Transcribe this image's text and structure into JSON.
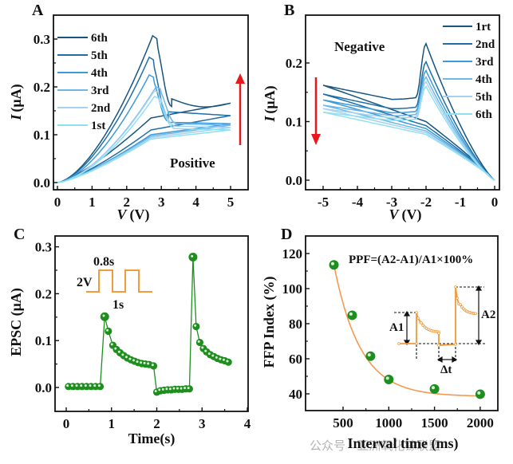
{
  "chart_data": [
    {
      "id": "A",
      "type": "line",
      "panel_label": "A",
      "xlabel": "V (V)",
      "xlabel_italic": "V",
      "xlabel_unit": "(V)",
      "ylabel": "I (μA)",
      "ylabel_italic": "I",
      "ylabel_unit": "(μA)",
      "xlim": [
        -0.1,
        5.5
      ],
      "ylim": [
        -0.02,
        0.34
      ],
      "xticks": [
        0,
        1,
        2,
        3,
        4,
        5
      ],
      "yticks": [
        0.0,
        0.1,
        0.2,
        0.3
      ],
      "ytick_labels": [
        "0.0",
        "0.1",
        "0.2",
        "0.3"
      ],
      "annotation": "Positive",
      "arrow": {
        "direction": "up",
        "color": "#e8191c"
      },
      "legend_placement": "top-left",
      "series": [
        {
          "name": "6th",
          "color": "#17557f",
          "peak_v": 2.75,
          "peak_i": 0.307,
          "fwd_end": 0.166,
          "rev_end_low": 0.166,
          "rev_tail": 0.165
        },
        {
          "name": "5th",
          "color": "#1f6fa6",
          "peak_v": 2.65,
          "peak_i": 0.262,
          "fwd_end": 0.14,
          "rev_tail": 0.14
        },
        {
          "name": "4th",
          "color": "#3d9ad9",
          "peak_v": 2.65,
          "peak_i": 0.225,
          "fwd_end": 0.123,
          "rev_tail": 0.123
        },
        {
          "name": "3rd",
          "color": "#6fb7e8",
          "peak_v": 2.85,
          "peak_i": 0.2,
          "fwd_end": 0.12,
          "rev_tail": 0.12
        },
        {
          "name": "2nd",
          "color": "#a6d2ef",
          "peak_v": 2.8,
          "peak_i": 0.192,
          "fwd_end": 0.115,
          "rev_tail": 0.115
        },
        {
          "name": "1st",
          "color": "#8fe0f5",
          "peak_v": 2.8,
          "peak_i": 0.18,
          "fwd_end": 0.11,
          "rev_tail": 0.11
        }
      ]
    },
    {
      "id": "B",
      "type": "line",
      "panel_label": "B",
      "xlabel": "V (V)",
      "xlabel_italic": "V",
      "xlabel_unit": "(V)",
      "ylabel": "I (μA)",
      "ylabel_italic": "I",
      "ylabel_unit": "(μA)",
      "xlim": [
        -5.5,
        0.1
      ],
      "ylim": [
        -0.02,
        0.27
      ],
      "xticks": [
        -5,
        -4,
        -3,
        -2,
        -1,
        0
      ],
      "yticks": [
        0.0,
        0.1,
        0.2
      ],
      "ytick_labels": [
        "0.0",
        "0.1",
        "0.2"
      ],
      "annotation": "Negative",
      "arrow": {
        "direction": "down",
        "color": "#e8191c"
      },
      "legend_placement": "top-right",
      "series": [
        {
          "name": "1rt",
          "color": "#17557f",
          "peak_i": 0.233,
          "start_i": 0.162,
          "valley_i": 0.138,
          "rev_mid": 0.1
        },
        {
          "name": "2nd",
          "color": "#1f6fa6",
          "peak_i": 0.202,
          "start_i": 0.147,
          "valley_i": 0.122,
          "rev_mid": 0.093
        },
        {
          "name": "3rd",
          "color": "#3d9ad9",
          "peak_i": 0.187,
          "start_i": 0.137,
          "valley_i": 0.115,
          "rev_mid": 0.088
        },
        {
          "name": "4th",
          "color": "#6fb7e8",
          "peak_i": 0.176,
          "start_i": 0.128,
          "valley_i": 0.11,
          "rev_mid": 0.084
        },
        {
          "name": "5th",
          "color": "#a6d2ef",
          "peak_i": 0.168,
          "start_i": 0.122,
          "valley_i": 0.106,
          "rev_mid": 0.081
        },
        {
          "name": "6th",
          "color": "#8fe0f5",
          "peak_i": 0.16,
          "start_i": 0.116,
          "valley_i": 0.102,
          "rev_mid": 0.078
        }
      ]
    },
    {
      "id": "C",
      "type": "scatter",
      "panel_label": "C",
      "xlabel": "Time(s)",
      "ylabel": "EPSC (μA)",
      "xlim": [
        -0.25,
        4
      ],
      "ylim": [
        -0.05,
        0.33
      ],
      "xticks": [
        0,
        1,
        2,
        3,
        4
      ],
      "yticks": [
        0.0,
        0.1,
        0.2,
        0.3
      ],
      "ytick_labels": [
        "0.0",
        "0.1",
        "0.2",
        "0.3"
      ],
      "color": "#1e8f1e",
      "inset": {
        "label_top": "0.8s",
        "label_left": "2V",
        "label_bottom": "1s",
        "color": "#f39a3a"
      },
      "points": {
        "x": [
          0.05,
          0.15,
          0.25,
          0.35,
          0.45,
          0.55,
          0.65,
          0.75,
          0.85,
          0.93,
          1.03,
          1.11,
          1.19,
          1.27,
          1.35,
          1.43,
          1.51,
          1.59,
          1.67,
          1.75,
          1.83,
          1.93,
          2.0,
          2.08,
          2.16,
          2.24,
          2.32,
          2.4,
          2.48,
          2.56,
          2.64,
          2.72,
          2.8,
          2.87,
          2.95,
          3.03,
          3.1,
          3.18,
          3.26,
          3.34,
          3.42,
          3.5,
          3.58
        ],
        "y": [
          0.002,
          0.002,
          0.002,
          0.002,
          0.002,
          0.002,
          0.002,
          0.002,
          0.151,
          0.12,
          0.09,
          0.081,
          0.074,
          0.068,
          0.063,
          0.059,
          0.056,
          0.053,
          0.051,
          0.05,
          0.049,
          0.046,
          -0.01,
          -0.007,
          -0.006,
          -0.005,
          -0.005,
          -0.004,
          -0.004,
          -0.004,
          -0.003,
          -0.003,
          0.278,
          0.13,
          0.096,
          0.083,
          0.076,
          0.07,
          0.066,
          0.062,
          0.059,
          0.057,
          0.054
        ]
      }
    },
    {
      "id": "D",
      "type": "scatter",
      "panel_label": "D",
      "xlabel": "Interval time (ms)",
      "ylabel": "FFP Index (%)",
      "xlim": [
        200,
        2200
      ],
      "ylim": [
        30,
        125
      ],
      "xticks": [
        500,
        1000,
        1500,
        2000
      ],
      "yticks": [
        40,
        60,
        80,
        100,
        120
      ],
      "formula": "PPF=(A2-A1)/A1×100%",
      "point_color": "#1e8f1e",
      "fit_color": "#f39a50",
      "points": {
        "x": [
          400,
          600,
          800,
          1000,
          1500,
          2000
        ],
        "y": [
          113.5,
          84.8,
          61.5,
          48.2,
          42.8,
          39.8
        ]
      },
      "fit": {
        "model": "exponential_decay",
        "y0": 38.5,
        "A": 75,
        "x0": 400,
        "t": 290
      },
      "inset": {
        "label_a1": "A1",
        "label_a2": "A2",
        "label_dt": "Δt",
        "color": "#f39a3a"
      }
    }
  ],
  "watermark": "公众号 · 亚洲氧化镓联盟"
}
